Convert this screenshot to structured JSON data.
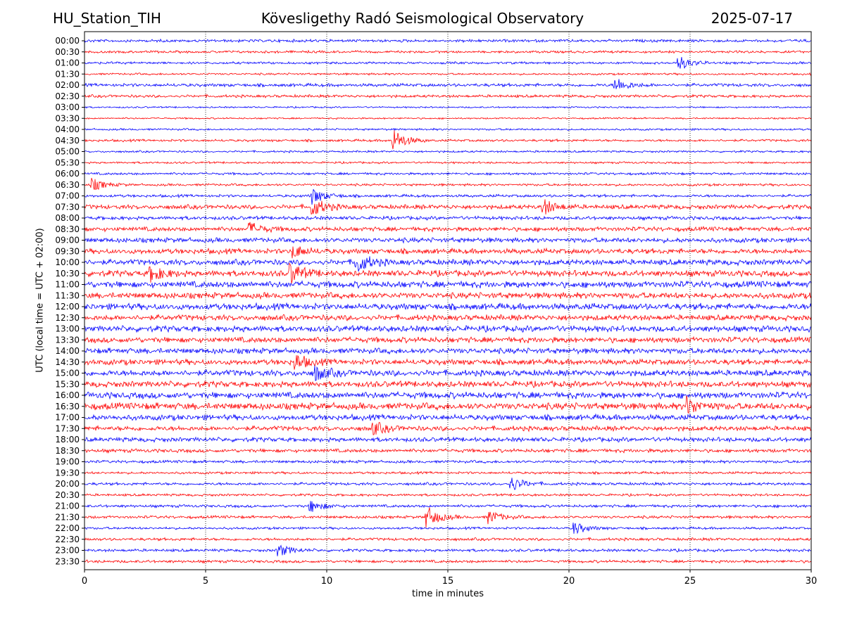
{
  "header": {
    "station": "HU_Station_TIH",
    "observatory": "Kövesligethy Radó Seismological Observatory",
    "date": "2025-07-17"
  },
  "colors": {
    "trace_a": "#0000ff",
    "trace_b": "#ff0000",
    "grid": "#000000",
    "background": "#ffffff"
  },
  "chart_data": {
    "type": "line",
    "xlabel": "time in minutes",
    "ylabel": "UTC (local time = UTC + 02:00)",
    "xlim": [
      0,
      30
    ],
    "xticks": [
      0,
      5,
      10,
      15,
      20,
      25,
      30
    ],
    "grid": "vertical dotted lines at x ticks",
    "rows": [
      "00:00",
      "00:30",
      "01:00",
      "01:30",
      "02:00",
      "02:30",
      "03:00",
      "03:30",
      "04:00",
      "04:30",
      "05:00",
      "05:30",
      "06:00",
      "06:30",
      "07:00",
      "07:30",
      "08:00",
      "08:30",
      "09:00",
      "09:30",
      "10:00",
      "10:30",
      "11:00",
      "11:30",
      "12:00",
      "12:30",
      "13:00",
      "13:30",
      "14:00",
      "14:30",
      "15:00",
      "15:30",
      "16:00",
      "16:30",
      "17:00",
      "17:30",
      "18:00",
      "18:30",
      "19:00",
      "19:30",
      "20:00",
      "20:30",
      "21:00",
      "21:30",
      "22:00",
      "22:30",
      "23:00",
      "23:30"
    ],
    "row_colors": "alternating blue / red starting with blue at 00:00",
    "noise_level": [
      0.35,
      0.3,
      0.3,
      0.25,
      0.4,
      0.35,
      0.2,
      0.2,
      0.25,
      0.3,
      0.25,
      0.25,
      0.3,
      0.3,
      0.35,
      0.55,
      0.45,
      0.55,
      0.6,
      0.65,
      0.7,
      0.75,
      0.8,
      0.75,
      0.8,
      0.7,
      0.75,
      0.7,
      0.7,
      0.7,
      0.75,
      0.75,
      0.8,
      0.85,
      0.7,
      0.6,
      0.55,
      0.45,
      0.35,
      0.3,
      0.35,
      0.3,
      0.35,
      0.35,
      0.3,
      0.35,
      0.35,
      0.35
    ],
    "events": [
      {
        "row": "01:00",
        "x": 24.5,
        "amplitude": 1.2
      },
      {
        "row": "02:00",
        "x": 21.9,
        "amplitude": 1.2
      },
      {
        "row": "04:30",
        "x": 12.7,
        "amplitude": 2.0
      },
      {
        "row": "06:30",
        "x": 0.3,
        "amplitude": 1.0
      },
      {
        "row": "07:00",
        "x": 9.4,
        "amplitude": 1.3
      },
      {
        "row": "07:30",
        "x": 9.4,
        "amplitude": 1.5
      },
      {
        "row": "07:30",
        "x": 18.9,
        "amplitude": 1.3
      },
      {
        "row": "08:30",
        "x": 6.8,
        "amplitude": 1.0
      },
      {
        "row": "09:30",
        "x": 8.6,
        "amplitude": 1.0
      },
      {
        "row": "10:00",
        "x": 11.2,
        "amplitude": 1.8
      },
      {
        "row": "10:30",
        "x": 8.5,
        "amplitude": 1.6
      },
      {
        "row": "10:30",
        "x": 2.7,
        "amplitude": 1.3
      },
      {
        "row": "14:30",
        "x": 8.7,
        "amplitude": 1.2
      },
      {
        "row": "15:00",
        "x": 9.5,
        "amplitude": 1.2
      },
      {
        "row": "16:30",
        "x": 24.9,
        "amplitude": 1.3
      },
      {
        "row": "17:30",
        "x": 11.9,
        "amplitude": 1.0
      },
      {
        "row": "20:00",
        "x": 17.6,
        "amplitude": 1.2
      },
      {
        "row": "21:00",
        "x": 9.3,
        "amplitude": 1.0
      },
      {
        "row": "21:30",
        "x": 14.1,
        "amplitude": 1.8
      },
      {
        "row": "21:30",
        "x": 16.7,
        "amplitude": 1.0
      },
      {
        "row": "22:00",
        "x": 20.2,
        "amplitude": 1.0
      },
      {
        "row": "23:00",
        "x": 8.0,
        "amplitude": 1.0
      }
    ]
  }
}
